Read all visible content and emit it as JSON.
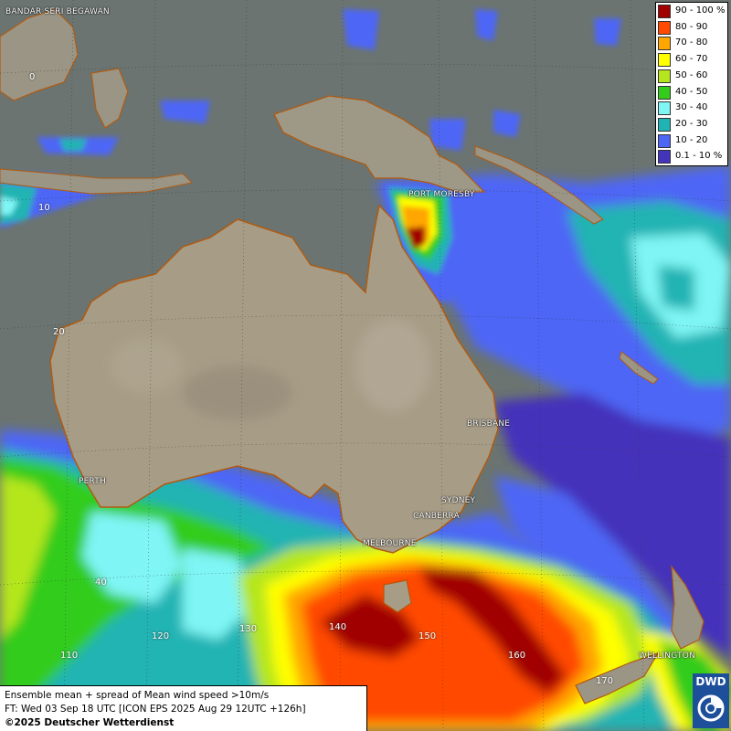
{
  "map": {
    "title": "Ensemble mean + spread of Mean wind speed >10m/s",
    "forecast_time": "FT: Wed 03 Sep 18 UTC [ICON EPS 2025 Aug 29 12UTC +126h]",
    "copyright": "©2025 Deutscher Wetterdienst",
    "logo_text": "DWD"
  },
  "legend": [
    {
      "label": "90 - 100 %",
      "color": "#a10000"
    },
    {
      "label": "80 - 90",
      "color": "#ff4a00"
    },
    {
      "label": "70 - 80",
      "color": "#ffa600"
    },
    {
      "label": "60 - 70",
      "color": "#ffff00"
    },
    {
      "label": "50 - 60",
      "color": "#b5e61d"
    },
    {
      "label": "40 - 50",
      "color": "#33cc1a"
    },
    {
      "label": "30 - 40",
      "color": "#7ff5f5"
    },
    {
      "label": "20 - 30",
      "color": "#20b3b3"
    },
    {
      "label": "10 - 20",
      "color": "#4d66f5"
    },
    {
      "label": "0.1 - 10 %",
      "color": "#4433bb"
    }
  ],
  "cities": {
    "bandar": "BANDAR SERI BEGAWAN",
    "port_moresby": "PORT MORESBY",
    "brisbane": "BRISBANE",
    "perth": "PERTH",
    "sydney": "SYDNEY",
    "canberra": "CANBERRA",
    "melbourne": "MELBOURNE",
    "wellington": "WELLINGTON"
  },
  "grid_labels": {
    "lat0": "0",
    "lat10": "10",
    "lat20": "20",
    "lat40": "40",
    "lon110": "110",
    "lon120": "120",
    "lon130": "130",
    "lon140": "140",
    "lon150": "150",
    "lon160": "160",
    "lon170": "170"
  }
}
